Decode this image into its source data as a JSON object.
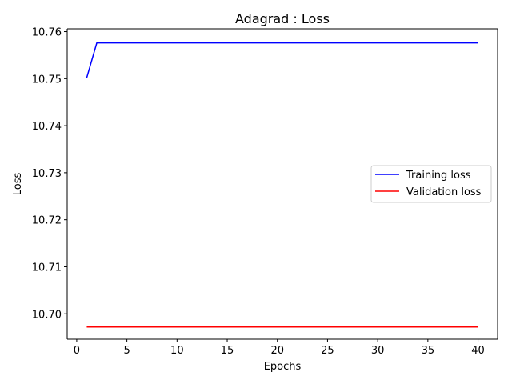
{
  "chart_data": {
    "type": "line",
    "title": "Adagrad : Loss",
    "xlabel": "Epochs",
    "ylabel": "Loss",
    "xlim": [
      -0.95,
      41.95
    ],
    "ylim": [
      10.6946,
      10.7606
    ],
    "xticks": [
      0,
      5,
      10,
      15,
      20,
      25,
      30,
      35,
      40
    ],
    "yticks": [
      10.7,
      10.71,
      10.72,
      10.73,
      10.74,
      10.75,
      10.76
    ],
    "xtick_labels": [
      "0",
      "5",
      "10",
      "15",
      "20",
      "25",
      "30",
      "35",
      "40"
    ],
    "ytick_labels": [
      "10.70",
      "10.71",
      "10.72",
      "10.73",
      "10.74",
      "10.75",
      "10.76"
    ],
    "grid": false,
    "legend_position": "center-right",
    "series": [
      {
        "name": "Training loss",
        "color": "#0000ff",
        "x": [
          1,
          2,
          3,
          4,
          5,
          6,
          7,
          8,
          9,
          10,
          11,
          12,
          13,
          14,
          15,
          16,
          17,
          18,
          19,
          20,
          21,
          22,
          23,
          24,
          25,
          26,
          27,
          28,
          29,
          30,
          31,
          32,
          33,
          34,
          35,
          36,
          37,
          38,
          39,
          40
        ],
        "y": [
          10.7502,
          10.7576,
          10.7576,
          10.7576,
          10.7576,
          10.7576,
          10.7576,
          10.7576,
          10.7576,
          10.7576,
          10.7576,
          10.7576,
          10.7576,
          10.7576,
          10.7576,
          10.7576,
          10.7576,
          10.7576,
          10.7576,
          10.7576,
          10.7576,
          10.7576,
          10.7576,
          10.7576,
          10.7576,
          10.7576,
          10.7576,
          10.7576,
          10.7576,
          10.7576,
          10.7576,
          10.7576,
          10.7576,
          10.7576,
          10.7576,
          10.7576,
          10.7576,
          10.7576,
          10.7576,
          10.7576
        ]
      },
      {
        "name": "Validation loss",
        "color": "#ff0000",
        "x": [
          1,
          2,
          3,
          4,
          5,
          6,
          7,
          8,
          9,
          10,
          11,
          12,
          13,
          14,
          15,
          16,
          17,
          18,
          19,
          20,
          21,
          22,
          23,
          24,
          25,
          26,
          27,
          28,
          29,
          30,
          31,
          32,
          33,
          34,
          35,
          36,
          37,
          38,
          39,
          40
        ],
        "y": [
          10.6972,
          10.6972,
          10.6972,
          10.6972,
          10.6972,
          10.6972,
          10.6972,
          10.6972,
          10.6972,
          10.6972,
          10.6972,
          10.6972,
          10.6972,
          10.6972,
          10.6972,
          10.6972,
          10.6972,
          10.6972,
          10.6972,
          10.6972,
          10.6972,
          10.6972,
          10.6972,
          10.6972,
          10.6972,
          10.6972,
          10.6972,
          10.6972,
          10.6972,
          10.6972,
          10.6972,
          10.6972,
          10.6972,
          10.6972,
          10.6972,
          10.6972,
          10.6972,
          10.6972,
          10.6972,
          10.6972
        ]
      }
    ]
  }
}
